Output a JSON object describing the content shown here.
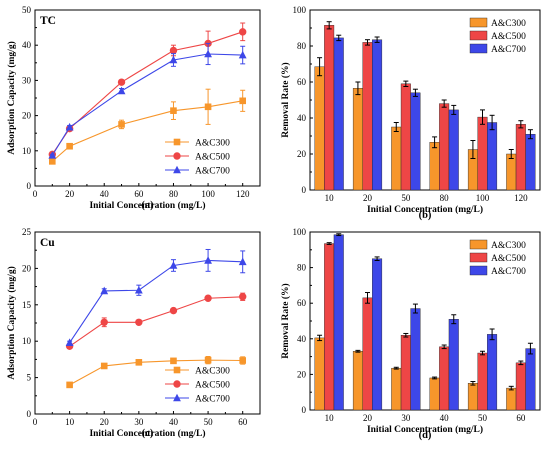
{
  "colors": {
    "c300": "#F7962B",
    "c500": "#EE4646",
    "c700": "#3D47E8"
  },
  "chart_data": [
    {
      "type": "line",
      "corner_label": "TC",
      "panel_label": "(a)",
      "xlabel": "Initial Concentration (mg/L)",
      "ylabel": "Adsorption Capacity (mg/g)",
      "xlim": [
        0,
        130
      ],
      "ylim": [
        0,
        50
      ],
      "xticks": [
        0,
        20,
        40,
        60,
        80,
        100,
        120
      ],
      "yticks": [
        0,
        10,
        20,
        30,
        40,
        50
      ],
      "x": [
        10,
        20,
        50,
        80,
        100,
        120
      ],
      "legend_position": "bottom-right",
      "series": [
        {
          "name": "A&C300",
          "color_key": "c300",
          "marker": "square",
          "values": [
            7.0,
            11.3,
            17.5,
            21.4,
            22.5,
            24.2
          ],
          "errors": [
            0.5,
            0.6,
            1.2,
            2.5,
            5.0,
            3.0
          ]
        },
        {
          "name": "A&C500",
          "color_key": "c500",
          "marker": "circle",
          "values": [
            9.0,
            16.3,
            29.5,
            38.5,
            40.5,
            43.8
          ],
          "errors": [
            0.4,
            0.5,
            0.6,
            1.5,
            3.5,
            2.5
          ]
        },
        {
          "name": "A&C700",
          "color_key": "c700",
          "marker": "triangle",
          "values": [
            8.7,
            16.7,
            27.0,
            35.8,
            37.5,
            37.2
          ],
          "errors": [
            0.3,
            0.5,
            0.7,
            1.8,
            3.0,
            2.5
          ]
        }
      ]
    },
    {
      "type": "bar",
      "panel_label": "(b)",
      "xlabel": "Initial Concentration (mg/L)",
      "ylabel": "Removal Rate (%)",
      "ylim": [
        0,
        100
      ],
      "yticks": [
        0,
        20,
        40,
        60,
        80,
        100
      ],
      "categories": [
        "10",
        "20",
        "50",
        "80",
        "100",
        "120"
      ],
      "legend_position": "top-right",
      "series": [
        {
          "name": "A&C300",
          "color_key": "c300",
          "values": [
            68.5,
            56.5,
            35.0,
            26.5,
            22.5,
            20.0
          ],
          "errors": [
            5.0,
            3.5,
            2.5,
            3.0,
            5.0,
            2.5
          ]
        },
        {
          "name": "A&C500",
          "color_key": "c500",
          "values": [
            91.5,
            82.0,
            59.0,
            48.0,
            40.5,
            36.5
          ],
          "errors": [
            2.0,
            1.5,
            1.5,
            2.0,
            4.0,
            2.0
          ]
        },
        {
          "name": "A&C700",
          "color_key": "c700",
          "values": [
            84.5,
            83.5,
            54.0,
            44.5,
            37.5,
            31.0
          ],
          "errors": [
            1.5,
            1.5,
            2.0,
            2.5,
            4.0,
            2.5
          ]
        }
      ]
    },
    {
      "type": "line",
      "corner_label": "Cu",
      "panel_label": "(c)",
      "xlabel": "Initial Concentration (mg/L)",
      "ylabel": "Adsorption Capacity (mg/g)",
      "xlim": [
        0,
        65
      ],
      "ylim": [
        0,
        25
      ],
      "xticks": [
        0,
        10,
        20,
        30,
        40,
        50,
        60
      ],
      "yticks": [
        0,
        5,
        10,
        15,
        20,
        25
      ],
      "x": [
        10,
        20,
        30,
        40,
        50,
        60
      ],
      "legend_position": "bottom-right",
      "series": [
        {
          "name": "A&C300",
          "color_key": "c300",
          "marker": "square",
          "values": [
            4.0,
            6.6,
            7.1,
            7.3,
            7.4,
            7.35
          ],
          "errors": [
            0.1,
            0.2,
            0.2,
            0.2,
            0.5,
            0.5
          ]
        },
        {
          "name": "A&C500",
          "color_key": "c500",
          "marker": "circle",
          "values": [
            9.3,
            12.6,
            12.6,
            14.2,
            15.9,
            16.1
          ],
          "errors": [
            0.2,
            0.6,
            0.3,
            0.3,
            0.3,
            0.5
          ]
        },
        {
          "name": "A&C700",
          "color_key": "c700",
          "marker": "triangle",
          "values": [
            9.8,
            16.9,
            17.0,
            20.4,
            21.1,
            20.9
          ],
          "errors": [
            0.2,
            0.3,
            0.7,
            0.8,
            1.5,
            1.5
          ]
        }
      ]
    },
    {
      "type": "bar",
      "panel_label": "(d)",
      "xlabel": "Initial Concentration (mg/L)",
      "ylabel": "Removal Rate (%)",
      "ylim": [
        0,
        100
      ],
      "yticks": [
        0,
        20,
        40,
        60,
        80,
        100
      ],
      "categories": [
        "10",
        "20",
        "30",
        "40",
        "50",
        "60"
      ],
      "legend_position": "top-right",
      "series": [
        {
          "name": "A&C300",
          "color_key": "c300",
          "values": [
            40.5,
            33.0,
            23.5,
            18.0,
            15.0,
            12.3
          ],
          "errors": [
            1.5,
            0.5,
            0.5,
            0.5,
            1.0,
            1.0
          ]
        },
        {
          "name": "A&C500",
          "color_key": "c500",
          "values": [
            93.5,
            63.0,
            42.0,
            35.5,
            32.0,
            26.5
          ],
          "errors": [
            0.5,
            3.0,
            1.0,
            1.0,
            1.0,
            1.0
          ]
        },
        {
          "name": "A&C700",
          "color_key": "c700",
          "values": [
            98.5,
            85.0,
            57.0,
            51.0,
            42.5,
            34.5
          ],
          "errors": [
            0.5,
            1.0,
            2.5,
            2.5,
            3.0,
            3.0
          ]
        }
      ]
    }
  ]
}
